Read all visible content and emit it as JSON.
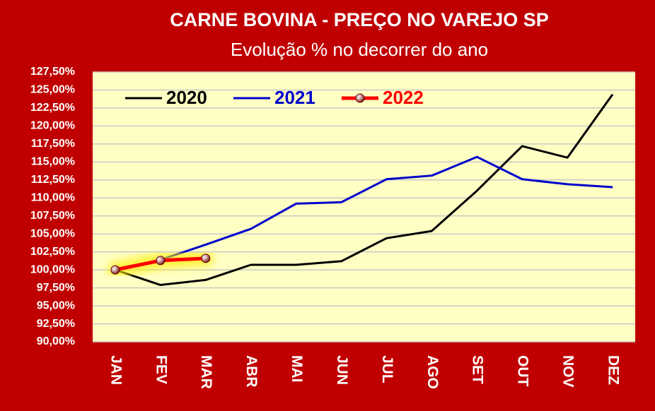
{
  "chart_data": {
    "type": "line",
    "title": "CARNE BOVINA - PREÇO NO VAREJO SP",
    "subtitle": "Evolução % no decorrer do ano",
    "categories": [
      "JAN",
      "FEV",
      "MAR",
      "ABR",
      "MAI",
      "JUN",
      "JUL",
      "AGO",
      "SET",
      "OUT",
      "NOV",
      "DEZ"
    ],
    "series": [
      {
        "name": "2020",
        "color": "#000000",
        "values": [
          100,
          97.9,
          98.6,
          100.7,
          100.7,
          101.2,
          104.4,
          105.4,
          111.0,
          117.2,
          115.6,
          124.4
        ]
      },
      {
        "name": "2021",
        "color": "#0000cc",
        "values": [
          100,
          101.4,
          103.5,
          105.7,
          109.2,
          109.4,
          112.6,
          113.1,
          115.7,
          112.6,
          111.9,
          111.5
        ]
      },
      {
        "name": "2022",
        "color": "#ff0000",
        "markers": true,
        "values": [
          100,
          101.3,
          101.6,
          null,
          null,
          null,
          null,
          null,
          null,
          null,
          null,
          null
        ]
      }
    ],
    "ylim": [
      90,
      127.5
    ],
    "yticks": [
      {
        "value": 90,
        "label": "90,00%"
      },
      {
        "value": 92.5,
        "label": "92,50%"
      },
      {
        "value": 95,
        "label": "95,00%"
      },
      {
        "value": 97.5,
        "label": "97,50%"
      },
      {
        "value": 100,
        "label": "100,00%"
      },
      {
        "value": 102.5,
        "label": "102,50%"
      },
      {
        "value": 105,
        "label": "105,00%"
      },
      {
        "value": 107.5,
        "label": "107,50%"
      },
      {
        "value": 110,
        "label": "110,00%"
      },
      {
        "value": 112.5,
        "label": "112,50%"
      },
      {
        "value": 115,
        "label": "115,00%"
      },
      {
        "value": 117.5,
        "label": "117,50%"
      },
      {
        "value": 120,
        "label": "120,00%"
      },
      {
        "value": 122.5,
        "label": "122,50%"
      },
      {
        "value": 125,
        "label": "125,00%"
      },
      {
        "value": 127.5,
        "label": "127,50%"
      }
    ],
    "grid": true,
    "legend": "top"
  }
}
